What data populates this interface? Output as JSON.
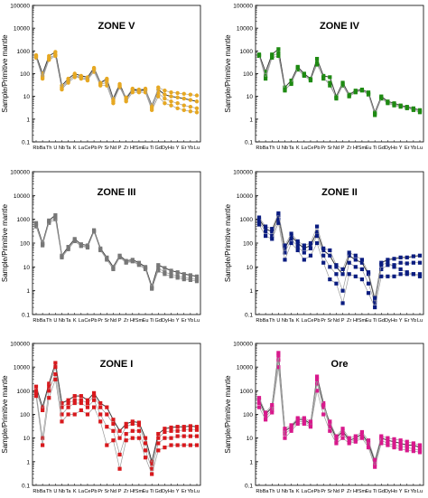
{
  "figure": {
    "elements": [
      "Rb",
      "Ba",
      "Th",
      "U",
      "Nb",
      "Ta",
      "K",
      "La",
      "Ce",
      "Pb",
      "Pr",
      "Sr",
      "Nd",
      "P",
      "Zr",
      "Hf",
      "Sm",
      "Eu",
      "Ti",
      "Gd",
      "Dy",
      "Ho",
      "Y",
      "Er",
      "Yb",
      "Lu"
    ],
    "x_tick_labels": [
      "Rb",
      "Ba",
      "Th",
      "U",
      "Nb",
      "Ta",
      "K",
      "La",
      "Ce",
      "Pb",
      "Pr",
      "Sr",
      "Nd",
      "P",
      "Zr",
      "Hf",
      "Sm",
      "Eu",
      "Ti",
      "Gd",
      "Dy",
      "Ho",
      "Y",
      "Er",
      "Yb",
      "Lu"
    ],
    "y_tick_labels": [
      "100000",
      "10000",
      "1000",
      "100",
      "10",
      "1",
      "0.1"
    ],
    "ylabel": "Sample/Primitive mantle"
  },
  "chart_data": [
    {
      "type": "line",
      "panel": "zone-v",
      "title": "ZONE V",
      "color": "#e6a823",
      "marker": "circle",
      "ylabel": "Sample/Primitive mantle",
      "yscale": "log",
      "ylim": [
        0.1,
        100000
      ],
      "categories": [
        "Rb",
        "Ba",
        "Th",
        "U",
        "Nb",
        "Ta",
        "K",
        "La",
        "Ce",
        "Pb",
        "Pr",
        "Sr",
        "Nd",
        "P",
        "Zr",
        "Hf",
        "Sm",
        "Eu",
        "Ti",
        "Gd",
        "Dy",
        "Ho",
        "Y",
        "Er",
        "Yb",
        "Lu"
      ],
      "series": [
        {
          "values": [
            650,
            100,
            600,
            900,
            30,
            60,
            100,
            80,
            70,
            180,
            40,
            60,
            8,
            35,
            8,
            20,
            18,
            20,
            4,
            20,
            12,
            10,
            9,
            8,
            7,
            6
          ]
        },
        {
          "values": [
            550,
            80,
            450,
            700,
            25,
            50,
            80,
            70,
            60,
            150,
            35,
            40,
            6,
            25,
            7,
            18,
            16,
            18,
            3,
            14,
            8,
            6,
            5,
            4,
            3.5,
            3
          ]
        },
        {
          "values": [
            500,
            70,
            500,
            650,
            20,
            45,
            90,
            60,
            55,
            120,
            30,
            30,
            5,
            30,
            6,
            15,
            15,
            15,
            2.5,
            10,
            5,
            4,
            3,
            2.5,
            2.2,
            2
          ]
        },
        {
          "values": [
            600,
            60,
            400,
            600,
            22,
            40,
            70,
            65,
            50,
            160,
            38,
            50,
            7,
            28,
            9,
            22,
            20,
            22,
            3.5,
            25,
            18,
            15,
            14,
            13,
            12,
            11
          ]
        }
      ]
    },
    {
      "type": "line",
      "panel": "zone-iv",
      "title": "ZONE IV",
      "color": "#1e8a12",
      "marker": "square",
      "ylabel": "Sample/Primitive mantle",
      "yscale": "log",
      "ylim": [
        0.1,
        100000
      ],
      "categories": [
        "Rb",
        "Ba",
        "Th",
        "U",
        "Nb",
        "Ta",
        "K",
        "La",
        "Ce",
        "Pb",
        "Pr",
        "Sr",
        "Nd",
        "P",
        "Zr",
        "Hf",
        "Sm",
        "Eu",
        "Ti",
        "Gd",
        "Dy",
        "Ho",
        "Y",
        "Er",
        "Yb",
        "Lu"
      ],
      "series": [
        {
          "values": [
            700,
            120,
            700,
            1200,
            25,
            50,
            200,
            100,
            60,
            450,
            80,
            70,
            10,
            40,
            12,
            18,
            20,
            15,
            2,
            10,
            6,
            5,
            4,
            3.5,
            3,
            2.5
          ]
        },
        {
          "values": [
            600,
            80,
            600,
            800,
            18,
            40,
            150,
            80,
            50,
            300,
            60,
            40,
            8,
            30,
            10,
            15,
            18,
            12,
            1.5,
            8,
            5,
            4,
            3.5,
            3,
            2.5,
            2
          ]
        },
        {
          "values": [
            650,
            60,
            500,
            600,
            20,
            35,
            180,
            90,
            55,
            250,
            70,
            30,
            9,
            35,
            11,
            16,
            19,
            13,
            1.8,
            9,
            5.5,
            4.5,
            3.8,
            3.2,
            2.8,
            2.2
          ]
        }
      ]
    },
    {
      "type": "line",
      "panel": "zone-iii",
      "title": "ZONE III",
      "color": "#777777",
      "marker": "square",
      "ylabel": "Sample/Primitive mantle",
      "yscale": "log",
      "ylim": [
        0.1,
        100000
      ],
      "categories": [
        "Rb",
        "Ba",
        "Th",
        "U",
        "Nb",
        "Ta",
        "K",
        "La",
        "Ce",
        "Pb",
        "Pr",
        "Sr",
        "Nd",
        "P",
        "Zr",
        "Hf",
        "Sm",
        "Eu",
        "Ti",
        "Gd",
        "Dy",
        "Ho",
        "Y",
        "Er",
        "Yb",
        "Lu"
      ],
      "series": [
        {
          "values": [
            700,
            100,
            900,
            1500,
            30,
            70,
            150,
            90,
            80,
            350,
            60,
            25,
            10,
            30,
            18,
            20,
            15,
            10,
            1.5,
            12,
            9,
            7,
            6,
            5,
            4.5,
            4
          ]
        },
        {
          "values": [
            500,
            80,
            700,
            1000,
            25,
            55,
            120,
            75,
            65,
            300,
            50,
            20,
            8,
            25,
            15,
            17,
            12,
            8,
            1.2,
            7,
            5,
            4,
            3.5,
            3,
            2.8,
            2.5
          ]
        },
        {
          "values": [
            600,
            90,
            800,
            1200,
            28,
            60,
            130,
            80,
            70,
            320,
            55,
            22,
            9,
            28,
            16,
            18,
            13,
            9,
            1.3,
            9,
            6,
            5,
            4.2,
            3.6,
            3.2,
            3
          ]
        }
      ]
    },
    {
      "type": "line",
      "panel": "zone-ii",
      "title": "ZONE II",
      "color": "#0a1c80",
      "marker": "square",
      "ylabel": "Sample/Primitive mantle",
      "yscale": "log",
      "ylim": [
        0.1,
        100000
      ],
      "categories": [
        "Rb",
        "Ba",
        "Th",
        "U",
        "Nb",
        "Ta",
        "K",
        "La",
        "Ce",
        "Pb",
        "Pr",
        "Sr",
        "Nd",
        "P",
        "Zr",
        "Hf",
        "Sm",
        "Eu",
        "Ti",
        "Gd",
        "Dy",
        "Ho",
        "Y",
        "Er",
        "Yb",
        "Lu"
      ],
      "series": [
        {
          "values": [
            1000,
            400,
            300,
            1500,
            60,
            200,
            100,
            60,
            80,
            300,
            50,
            30,
            10,
            5,
            30,
            20,
            15,
            5,
            0.4,
            15,
            20,
            22,
            25,
            25,
            28,
            30
          ]
        },
        {
          "values": [
            800,
            300,
            200,
            1000,
            40,
            150,
            70,
            40,
            60,
            200,
            30,
            10,
            5,
            1,
            15,
            10,
            8,
            2,
            0.3,
            8,
            12,
            12,
            15,
            14,
            15,
            15
          ]
        },
        {
          "values": [
            600,
            200,
            150,
            700,
            20,
            100,
            50,
            20,
            30,
            100,
            15,
            3,
            2,
            0.3,
            5,
            4,
            3,
            0.8,
            0.2,
            4,
            4,
            4,
            5,
            5,
            5,
            5
          ]
        },
        {
          "values": [
            1200,
            500,
            400,
            1800,
            80,
            250,
            120,
            80,
            100,
            500,
            60,
            50,
            12,
            8,
            40,
            30,
            20,
            6,
            0.5,
            12,
            15,
            10,
            8,
            6,
            5,
            4
          ]
        }
      ]
    },
    {
      "type": "line",
      "panel": "zone-i",
      "title": "ZONE I",
      "color": "#d8191d",
      "marker": "square",
      "ylabel": "Sample/Primitive mantle",
      "yscale": "log",
      "ylim": [
        0.1,
        100000
      ],
      "categories": [
        "Rb",
        "Ba",
        "Th",
        "U",
        "Nb",
        "Ta",
        "K",
        "La",
        "Ce",
        "Pb",
        "Pr",
        "Sr",
        "Nd",
        "P",
        "Zr",
        "Hf",
        "Sm",
        "Eu",
        "Ti",
        "Gd",
        "Dy",
        "Ho",
        "Y",
        "Er",
        "Yb",
        "Lu"
      ],
      "series": [
        {
          "values": [
            1500,
            200,
            2000,
            15000,
            300,
            400,
            600,
            600,
            400,
            800,
            300,
            200,
            60,
            20,
            40,
            50,
            45,
            10,
            1,
            15,
            25,
            28,
            30,
            30,
            32,
            30
          ]
        },
        {
          "values": [
            1000,
            150,
            1500,
            10000,
            200,
            300,
            400,
            400,
            300,
            600,
            200,
            100,
            40,
            10,
            30,
            40,
            35,
            6,
            0.8,
            10,
            18,
            20,
            20,
            22,
            22,
            22
          ]
        },
        {
          "values": [
            800,
            10,
            1000,
            5000,
            100,
            200,
            300,
            300,
            200,
            400,
            100,
            30,
            20,
            2,
            15,
            20,
            20,
            3,
            0.5,
            6,
            10,
            10,
            12,
            12,
            12,
            12
          ]
        },
        {
          "values": [
            600,
            5,
            500,
            3000,
            50,
            100,
            100,
            150,
            100,
            200,
            50,
            5,
            8,
            0.5,
            8,
            10,
            10,
            1.5,
            0.3,
            3,
            4,
            5,
            5,
            5,
            5,
            5
          ]
        }
      ]
    },
    {
      "type": "line",
      "panel": "ore",
      "title": "Ore",
      "color": "#d8198c",
      "marker": "square",
      "ylabel": "Sample/Primitive mantle",
      "yscale": "log",
      "ylim": [
        0.1,
        100000
      ],
      "categories": [
        "Rb",
        "Ba",
        "Th",
        "U",
        "Nb",
        "Ta",
        "K",
        "La",
        "Ce",
        "Pb",
        "Pr",
        "Sr",
        "Nd",
        "P",
        "Zr",
        "Hf",
        "Sm",
        "Eu",
        "Ti",
        "Gd",
        "Dy",
        "Ho",
        "Y",
        "Er",
        "Yb",
        "Lu"
      ],
      "series": [
        {
          "values": [
            400,
            100,
            200,
            40000,
            20,
            30,
            60,
            60,
            40,
            4000,
            300,
            40,
            10,
            20,
            8,
            10,
            15,
            6,
            1,
            10,
            8,
            7,
            6,
            5,
            5,
            4
          ]
        },
        {
          "values": [
            300,
            80,
            150,
            20000,
            15,
            25,
            50,
            50,
            35,
            2000,
            200,
            30,
            8,
            15,
            7,
            8,
            12,
            5,
            0.8,
            8,
            6,
            5,
            4.5,
            4,
            3.5,
            3
          ]
        },
        {
          "values": [
            200,
            60,
            120,
            10000,
            10,
            20,
            40,
            40,
            30,
            1000,
            100,
            20,
            6,
            10,
            6,
            7,
            10,
            4,
            0.6,
            6,
            5,
            4,
            3.5,
            3,
            2.8,
            2.5
          ]
        },
        {
          "values": [
            500,
            120,
            250,
            30000,
            25,
            35,
            70,
            70,
            50,
            3000,
            250,
            50,
            12,
            25,
            10,
            12,
            18,
            8,
            1.2,
            12,
            10,
            9,
            8,
            7,
            6,
            5
          ]
        }
      ]
    }
  ]
}
